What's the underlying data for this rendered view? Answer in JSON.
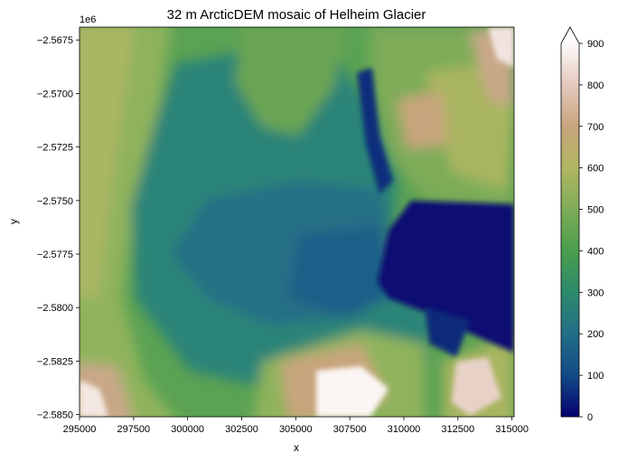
{
  "chart_data": {
    "type": "heatmap",
    "title": "32 m ArcticDEM mosaic of Helheim Glacier",
    "xlabel": "x",
    "ylabel": "y",
    "y_offset_label": "1e6",
    "xlim": [
      295000,
      315100
    ],
    "ylim": [
      -2.5851,
      -2.5669
    ],
    "x_ticks": [
      295000,
      297500,
      300000,
      302500,
      305000,
      307500,
      310000,
      312500,
      315000
    ],
    "x_tick_labels": [
      "295000",
      "297500",
      "300000",
      "302500",
      "305000",
      "307500",
      "310000",
      "312500",
      "315000"
    ],
    "y_ticks": [
      -2.5675,
      -2.57,
      -2.5725,
      -2.575,
      -2.5775,
      -2.58,
      -2.5825,
      -2.585
    ],
    "y_tick_labels": [
      "−2.5675",
      "−2.5700",
      "−2.5725",
      "−2.5750",
      "−2.5775",
      "−2.5800",
      "−2.5825",
      "−2.5850"
    ],
    "colorbar": {
      "colormap": "gist_earth",
      "range": [
        0,
        900
      ],
      "extend": "max",
      "ticks": [
        0,
        100,
        200,
        300,
        400,
        500,
        600,
        700,
        800,
        900
      ],
      "tick_labels": [
        "0",
        "100",
        "200",
        "300",
        "400",
        "500",
        "600",
        "700",
        "800",
        "900"
      ],
      "color_stops": [
        [
          0,
          "#060070"
        ],
        [
          100,
          "#134a86"
        ],
        [
          200,
          "#226e86"
        ],
        [
          300,
          "#2c8a6c"
        ],
        [
          400,
          "#4a9e4c"
        ],
        [
          500,
          "#7eac58"
        ],
        [
          600,
          "#b1b662"
        ],
        [
          700,
          "#c8a57c"
        ],
        [
          800,
          "#e4c9bd"
        ],
        [
          900,
          "#fdfbfb"
        ]
      ]
    },
    "grid": false
  }
}
